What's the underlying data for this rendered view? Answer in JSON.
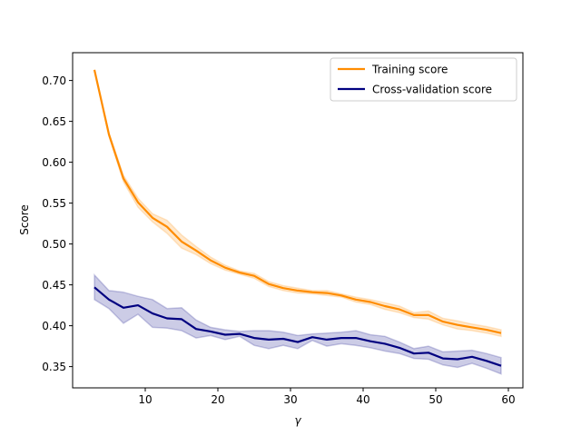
{
  "chart_data": {
    "type": "line",
    "xlabel": "γ",
    "ylabel": "Score",
    "xlim": [
      0,
      62
    ],
    "ylim": [
      0.324,
      0.734
    ],
    "xticks": [
      10,
      20,
      30,
      40,
      50,
      60
    ],
    "xtick_labels": [
      "10",
      "20",
      "30",
      "40",
      "50",
      "60"
    ],
    "yticks": [
      0.35,
      0.4,
      0.45,
      0.5,
      0.55,
      0.6,
      0.65,
      0.7
    ],
    "ytick_labels": [
      "0.35",
      "0.40",
      "0.45",
      "0.50",
      "0.55",
      "0.60",
      "0.65",
      "0.70"
    ],
    "grid": false,
    "legend_position": "top-right",
    "x": [
      3,
      5,
      7,
      9,
      11,
      13,
      15,
      17,
      19,
      21,
      23,
      25,
      27,
      29,
      31,
      33,
      35,
      37,
      39,
      41,
      43,
      45,
      47,
      49,
      51,
      53,
      55,
      57,
      59
    ],
    "series": [
      {
        "name": "Training score",
        "color": "#ff8c00",
        "band_color": "#ff8c00",
        "values": [
          0.713,
          0.634,
          0.58,
          0.551,
          0.532,
          0.521,
          0.503,
          0.492,
          0.48,
          0.471,
          0.465,
          0.461,
          0.451,
          0.446,
          0.443,
          0.441,
          0.44,
          0.437,
          0.432,
          0.429,
          0.424,
          0.42,
          0.413,
          0.413,
          0.405,
          0.401,
          0.398,
          0.395,
          0.391
        ],
        "lower": [
          0.713,
          0.632,
          0.576,
          0.545,
          0.527,
          0.513,
          0.495,
          0.487,
          0.476,
          0.468,
          0.463,
          0.458,
          0.448,
          0.443,
          0.44,
          0.439,
          0.437,
          0.435,
          0.429,
          0.426,
          0.42,
          0.416,
          0.41,
          0.408,
          0.401,
          0.396,
          0.394,
          0.391,
          0.387
        ],
        "upper": [
          0.713,
          0.636,
          0.584,
          0.556,
          0.537,
          0.529,
          0.511,
          0.497,
          0.484,
          0.474,
          0.467,
          0.464,
          0.454,
          0.449,
          0.446,
          0.443,
          0.443,
          0.439,
          0.435,
          0.432,
          0.428,
          0.424,
          0.416,
          0.418,
          0.409,
          0.406,
          0.402,
          0.399,
          0.395
        ]
      },
      {
        "name": "Cross-validation score",
        "color": "#000080",
        "band_color": "#000080",
        "values": [
          0.447,
          0.432,
          0.422,
          0.425,
          0.415,
          0.409,
          0.408,
          0.396,
          0.393,
          0.389,
          0.39,
          0.385,
          0.383,
          0.384,
          0.38,
          0.386,
          0.383,
          0.385,
          0.385,
          0.381,
          0.378,
          0.373,
          0.366,
          0.367,
          0.36,
          0.359,
          0.362,
          0.357,
          0.351
        ],
        "lower": [
          0.432,
          0.421,
          0.403,
          0.414,
          0.398,
          0.397,
          0.394,
          0.385,
          0.388,
          0.383,
          0.387,
          0.376,
          0.372,
          0.376,
          0.372,
          0.382,
          0.375,
          0.378,
          0.376,
          0.373,
          0.369,
          0.366,
          0.36,
          0.359,
          0.352,
          0.349,
          0.354,
          0.348,
          0.341
        ],
        "upper": [
          0.462,
          0.443,
          0.441,
          0.436,
          0.432,
          0.421,
          0.422,
          0.407,
          0.398,
          0.395,
          0.393,
          0.394,
          0.394,
          0.392,
          0.388,
          0.39,
          0.391,
          0.392,
          0.394,
          0.389,
          0.387,
          0.38,
          0.372,
          0.375,
          0.368,
          0.369,
          0.37,
          0.366,
          0.361
        ]
      }
    ]
  }
}
